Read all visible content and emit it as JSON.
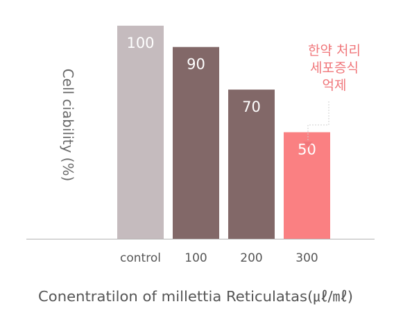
{
  "chart_data": {
    "type": "bar",
    "title": "",
    "xlabel": "Conentratilon of millettia Reticulatas(㎕/㎖)",
    "ylabel": "Cell ciability (%)",
    "categories": [
      "control",
      "100",
      "200",
      "300"
    ],
    "values": [
      100,
      90,
      70,
      50
    ],
    "ylim": [
      0,
      100
    ],
    "grid": false,
    "legend": "none",
    "bar_colors": [
      "#c5bbbe",
      "#826868",
      "#826868",
      "#fa8082"
    ],
    "annotation": {
      "lines": [
        "한약 처리",
        "세포증식",
        "억제"
      ],
      "target_category": "300",
      "color": "#f0767a"
    }
  }
}
